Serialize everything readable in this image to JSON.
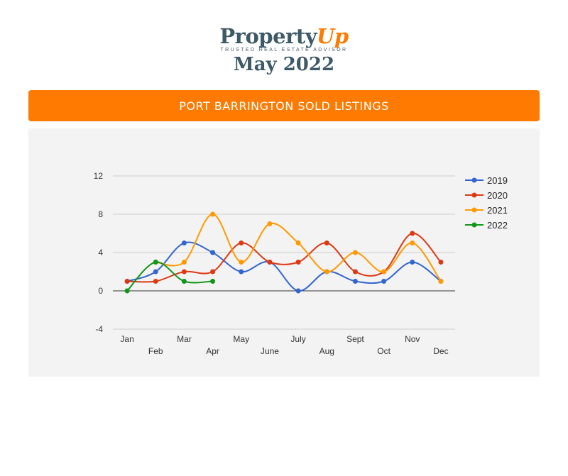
{
  "logo": {
    "brand_main": "Property",
    "brand_accent": "Up",
    "tagline": "TRUSTED REAL ESTATE ADVISOR",
    "month": "May 2022"
  },
  "banner": {
    "title": "PORT BARRINGTON SOLD LISTINGS"
  },
  "colors": {
    "banner": "#ff7a00",
    "brand": "#3e5a66",
    "panel": "#f3f3f3"
  },
  "chart_data": {
    "type": "line",
    "categories": [
      "Jan",
      "Feb",
      "Mar",
      "Apr",
      "May",
      "June",
      "July",
      "Aug",
      "Sept",
      "Oct",
      "Nov",
      "Dec"
    ],
    "yticks": [
      -4,
      0,
      4,
      8,
      12
    ],
    "ylim": [
      -4,
      12
    ],
    "grid": true,
    "smooth": true,
    "legend_position": "right",
    "series": [
      {
        "name": "2019",
        "color": "#3366cc",
        "values": [
          1,
          2,
          5,
          4,
          2,
          3,
          0,
          2,
          1,
          1,
          3,
          1
        ]
      },
      {
        "name": "2020",
        "color": "#dc3912",
        "values": [
          1,
          1,
          2,
          2,
          5,
          3,
          3,
          5,
          2,
          2,
          6,
          3
        ]
      },
      {
        "name": "2021",
        "color": "#ff9900",
        "values": [
          null,
          3,
          3,
          8,
          3,
          7,
          5,
          2,
          4,
          2,
          5,
          1
        ]
      },
      {
        "name": "2022",
        "color": "#109618",
        "values": [
          0,
          3,
          1,
          1,
          null,
          null,
          null,
          null,
          null,
          null,
          null,
          null
        ]
      }
    ]
  }
}
